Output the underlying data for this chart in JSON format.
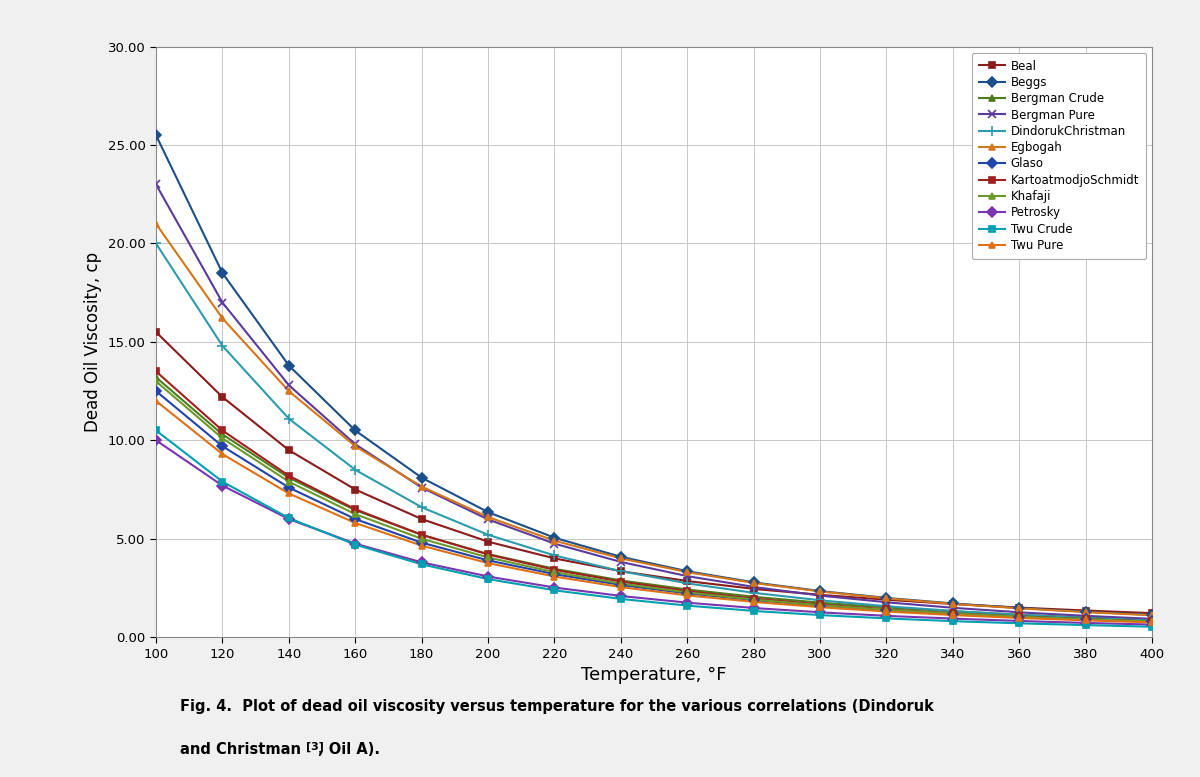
{
  "xlabel": "Temperature, °F",
  "ylabel": "Dead Oil Viscosity, cp",
  "xlim": [
    100,
    400
  ],
  "ylim": [
    0.0,
    30.0
  ],
  "xticks": [
    100,
    120,
    140,
    160,
    180,
    200,
    220,
    240,
    260,
    280,
    300,
    320,
    340,
    360,
    380,
    400
  ],
  "yticks": [
    0.0,
    5.0,
    10.0,
    15.0,
    20.0,
    25.0,
    30.0
  ],
  "T_key": [
    100,
    120,
    140,
    160,
    180,
    200,
    220,
    240,
    260,
    280,
    300,
    320,
    340,
    360,
    380,
    400
  ],
  "series": [
    {
      "name": "Beal",
      "color": "#8B1C1C",
      "marker": "s",
      "marker_size": 5,
      "values": [
        15.5,
        12.2,
        9.5,
        7.5,
        6.0,
        4.85,
        4.0,
        3.35,
        2.85,
        2.45,
        2.15,
        1.9,
        1.68,
        1.5,
        1.35,
        1.22
      ]
    },
    {
      "name": "Beggs",
      "color": "#1B4F8A",
      "marker": "D",
      "marker_size": 5,
      "values": [
        25.5,
        18.5,
        13.8,
        10.5,
        8.1,
        6.35,
        5.05,
        4.08,
        3.35,
        2.78,
        2.34,
        1.99,
        1.71,
        1.48,
        1.29,
        1.13
      ]
    },
    {
      "name": "Bergman Crude",
      "color": "#4E7D1E",
      "marker": "^",
      "marker_size": 5,
      "values": [
        13.2,
        10.3,
        8.1,
        6.45,
        5.2,
        4.22,
        3.47,
        2.88,
        2.42,
        2.05,
        1.75,
        1.51,
        1.31,
        1.14,
        1.0,
        0.88
      ]
    },
    {
      "name": "Bergman Pure",
      "color": "#5B3A9E",
      "marker": "x",
      "marker_size": 6,
      "values": [
        23.0,
        17.0,
        12.8,
        9.8,
        7.6,
        5.98,
        4.75,
        3.82,
        3.1,
        2.55,
        2.11,
        1.77,
        1.49,
        1.26,
        1.08,
        0.93
      ]
    },
    {
      "name": "DindorukChristman",
      "color": "#2B9BAD",
      "marker": "+",
      "marker_size": 7,
      "values": [
        20.0,
        14.8,
        11.1,
        8.5,
        6.6,
        5.2,
        4.15,
        3.35,
        2.73,
        2.25,
        1.87,
        1.57,
        1.33,
        1.13,
        0.97,
        0.84
      ]
    },
    {
      "name": "Egbogah",
      "color": "#D4761A",
      "marker": "^",
      "marker_size": 5,
      "values": [
        21.0,
        16.2,
        12.5,
        9.7,
        7.65,
        6.1,
        4.9,
        4.0,
        3.3,
        2.75,
        2.32,
        1.97,
        1.69,
        1.46,
        1.27,
        1.11
      ]
    },
    {
      "name": "Glaso",
      "color": "#2244AA",
      "marker": "D",
      "marker_size": 5,
      "values": [
        12.5,
        9.7,
        7.6,
        6.0,
        4.8,
        3.9,
        3.2,
        2.65,
        2.22,
        1.88,
        1.6,
        1.38,
        1.19,
        1.04,
        0.91,
        0.8
      ]
    },
    {
      "name": "KartoatmodjoSchmidt",
      "color": "#A32020",
      "marker": "s",
      "marker_size": 5,
      "values": [
        13.5,
        10.5,
        8.2,
        6.5,
        5.2,
        4.2,
        3.42,
        2.82,
        2.34,
        1.96,
        1.66,
        1.41,
        1.21,
        1.05,
        0.91,
        0.8
      ]
    },
    {
      "name": "Khafaji",
      "color": "#6B9A2A",
      "marker": "^",
      "marker_size": 5,
      "values": [
        13.0,
        10.1,
        7.9,
        6.25,
        5.0,
        4.05,
        3.3,
        2.72,
        2.27,
        1.91,
        1.62,
        1.39,
        1.2,
        1.04,
        0.91,
        0.8
      ]
    },
    {
      "name": "Petrosky",
      "color": "#7B35B0",
      "marker": "D",
      "marker_size": 5,
      "values": [
        10.0,
        7.7,
        6.0,
        4.75,
        3.8,
        3.08,
        2.52,
        2.09,
        1.75,
        1.48,
        1.26,
        1.08,
        0.94,
        0.82,
        0.72,
        0.64
      ]
    },
    {
      "name": "Twu Crude",
      "color": "#00A0B0",
      "marker": "s",
      "marker_size": 5,
      "values": [
        10.5,
        7.9,
        6.05,
        4.7,
        3.7,
        2.95,
        2.38,
        1.94,
        1.6,
        1.33,
        1.12,
        0.95,
        0.81,
        0.7,
        0.61,
        0.53
      ]
    },
    {
      "name": "Twu Pure",
      "color": "#E07015",
      "marker": "^",
      "marker_size": 5,
      "values": [
        12.0,
        9.3,
        7.3,
        5.8,
        4.65,
        3.76,
        3.08,
        2.54,
        2.12,
        1.79,
        1.52,
        1.3,
        1.12,
        0.97,
        0.85,
        0.75
      ]
    }
  ],
  "background_color": "#FFFFFF",
  "plot_bg_color": "#FFFFFF",
  "grid_color": "#C8C8C8",
  "outer_bg": "#F0F0F0",
  "caption_line1": "Fig. 4.  Plot of dead oil viscosity versus temperature for the various correlations (Dindoruk",
  "caption_line2": "and Christman",
  "caption_superscript": "[3]",
  "caption_end": ", Oil A)."
}
